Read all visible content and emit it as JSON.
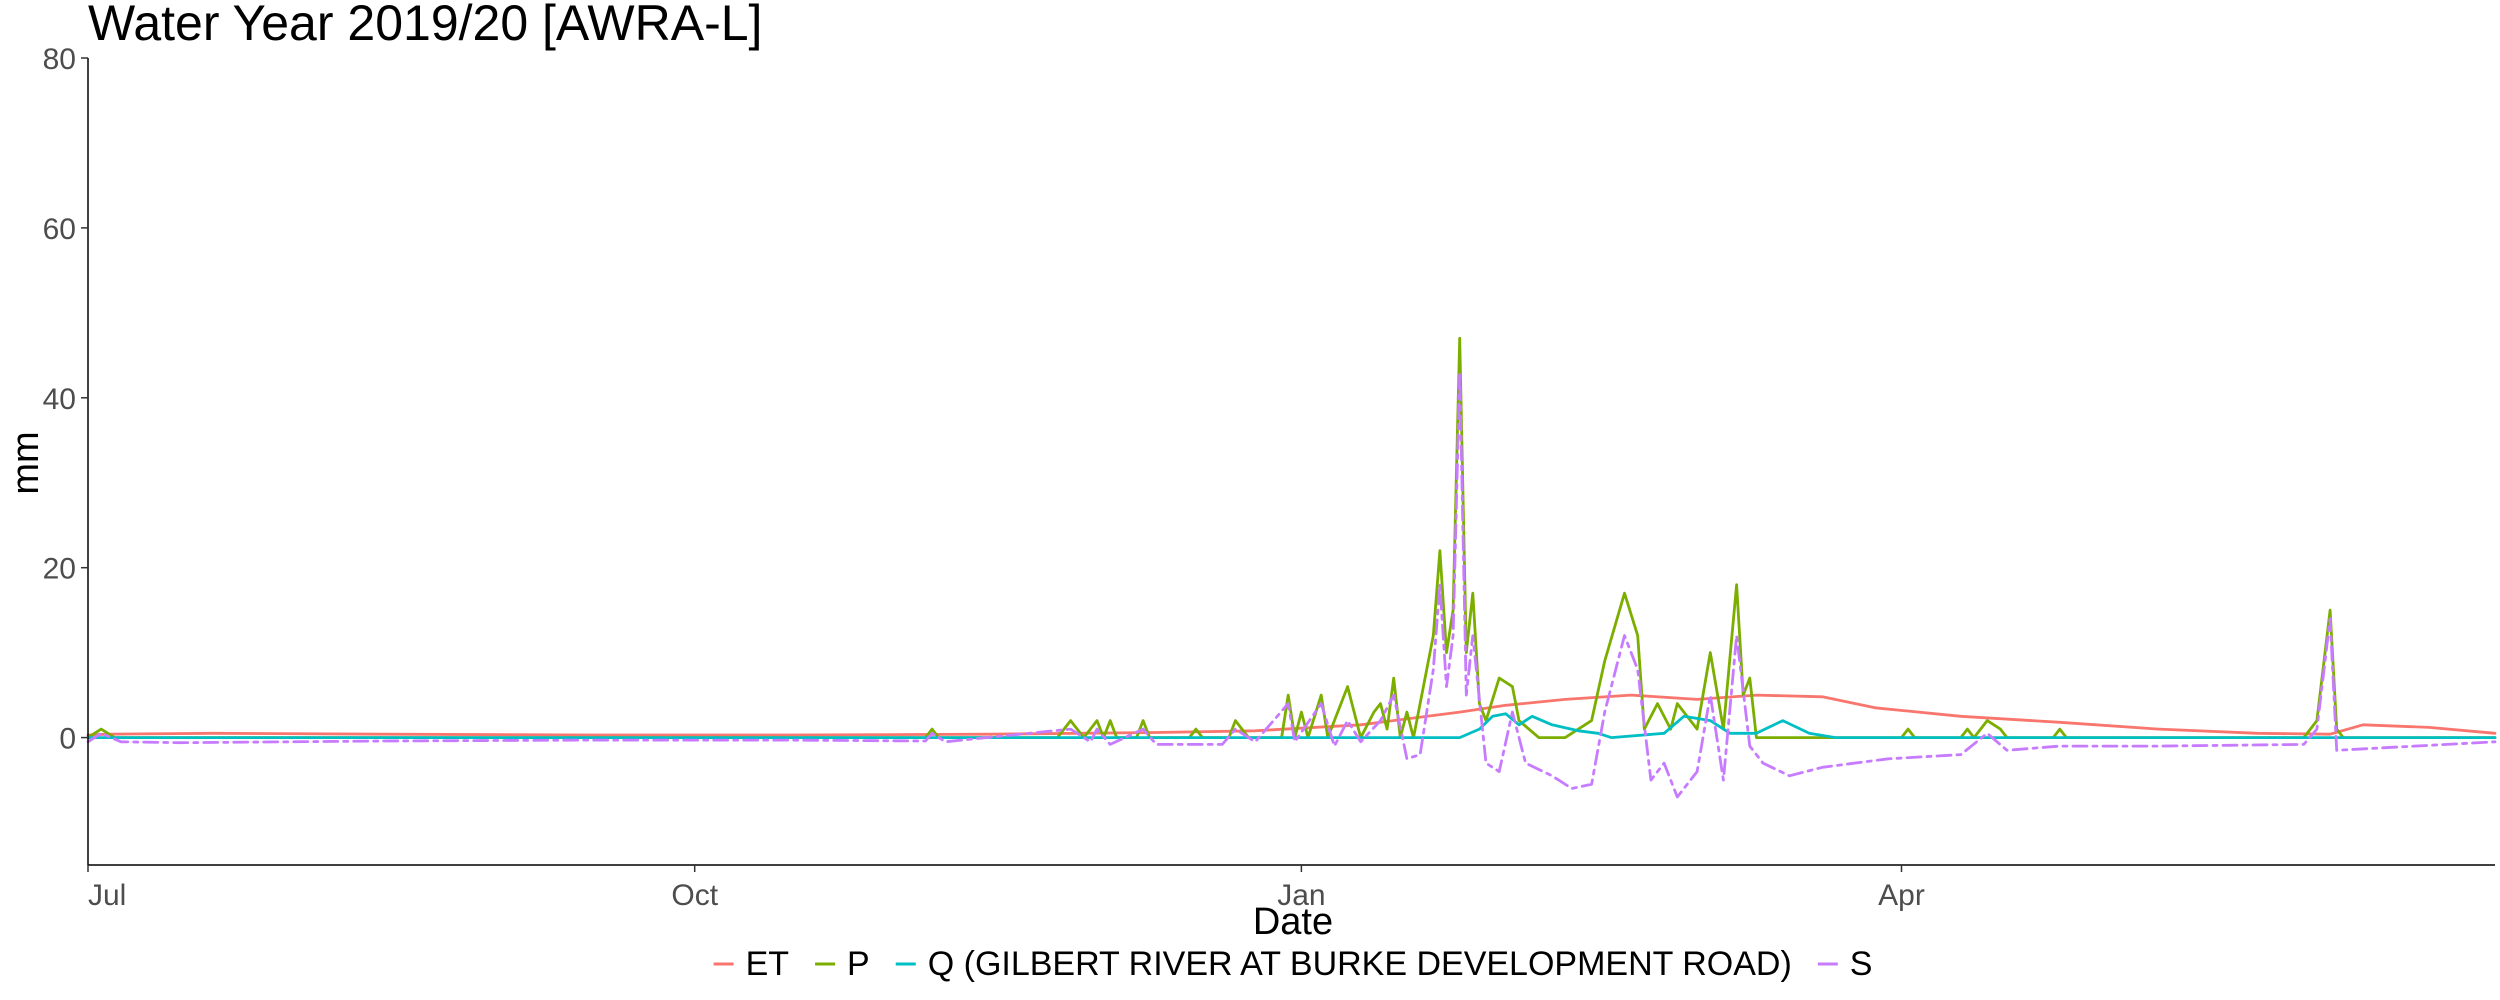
{
  "chart_data": {
    "type": "line",
    "title": "Water Year 2019/20 [AWRA-L]",
    "xlabel": "Date",
    "ylabel": "mm",
    "x_domain": [
      "2019-07-01",
      "2020-06-30"
    ],
    "ylim": [
      -15,
      80
    ],
    "y_ticks": [
      0,
      20,
      40,
      60,
      80
    ],
    "x_ticks": [
      {
        "date": "2019-07-01",
        "label": "Jul"
      },
      {
        "date": "2019-10-01",
        "label": "Oct"
      },
      {
        "date": "2020-01-01",
        "label": "Jan"
      },
      {
        "date": "2020-04-01",
        "label": "Apr"
      }
    ],
    "grid": false,
    "legend_position": "bottom",
    "series": [
      {
        "name": "ET",
        "color": "#F8766D",
        "dash": "solid",
        "points": [
          [
            "2019-07-01",
            0.3
          ],
          [
            "2019-07-04",
            0.4
          ],
          [
            "2019-07-20",
            0.5
          ],
          [
            "2019-08-15",
            0.4
          ],
          [
            "2019-09-15",
            0.3
          ],
          [
            "2019-10-15",
            0.3
          ],
          [
            "2019-11-15",
            0.4
          ],
          [
            "2019-12-10",
            0.6
          ],
          [
            "2019-12-25",
            0.8
          ],
          [
            "2020-01-10",
            1.5
          ],
          [
            "2020-01-25",
            3.0
          ],
          [
            "2020-02-01",
            3.8
          ],
          [
            "2020-02-10",
            4.5
          ],
          [
            "2020-02-20",
            5.0
          ],
          [
            "2020-03-01",
            4.5
          ],
          [
            "2020-03-10",
            5.0
          ],
          [
            "2020-03-20",
            4.8
          ],
          [
            "2020-03-28",
            3.5
          ],
          [
            "2020-04-10",
            2.5
          ],
          [
            "2020-04-25",
            1.8
          ],
          [
            "2020-05-10",
            1.0
          ],
          [
            "2020-05-25",
            0.5
          ],
          [
            "2020-06-05",
            0.4
          ],
          [
            "2020-06-10",
            1.5
          ],
          [
            "2020-06-20",
            1.2
          ],
          [
            "2020-06-30",
            0.5
          ]
        ]
      },
      {
        "name": "P",
        "color": "#7CAE00",
        "dash": "solid",
        "points": [
          [
            "2019-07-01",
            0.0
          ],
          [
            "2019-07-03",
            1.0
          ],
          [
            "2019-07-05",
            0.0
          ],
          [
            "2019-11-05",
            0.0
          ],
          [
            "2019-11-06",
            1.0
          ],
          [
            "2019-11-07",
            0.0
          ],
          [
            "2019-11-25",
            0.0
          ],
          [
            "2019-11-27",
            2.0
          ],
          [
            "2019-11-29",
            0.0
          ],
          [
            "2019-12-01",
            2.0
          ],
          [
            "2019-12-02",
            0.0
          ],
          [
            "2019-12-03",
            2.0
          ],
          [
            "2019-12-04",
            0.0
          ],
          [
            "2019-12-07",
            0.0
          ],
          [
            "2019-12-08",
            2.0
          ],
          [
            "2019-12-09",
            0.0
          ],
          [
            "2019-12-15",
            0.0
          ],
          [
            "2019-12-16",
            1.0
          ],
          [
            "2019-12-17",
            0.0
          ],
          [
            "2019-12-21",
            0.0
          ],
          [
            "2019-12-22",
            2.0
          ],
          [
            "2019-12-24",
            0.0
          ],
          [
            "2019-12-29",
            0.0
          ],
          [
            "2019-12-30",
            5.0
          ],
          [
            "2019-12-31",
            0.0
          ],
          [
            "2020-01-01",
            3.0
          ],
          [
            "2020-01-02",
            0.0
          ],
          [
            "2020-01-04",
            5.0
          ],
          [
            "2020-01-05",
            0.0
          ],
          [
            "2020-01-06",
            2.0
          ],
          [
            "2020-01-08",
            6.0
          ],
          [
            "2020-01-10",
            0.0
          ],
          [
            "2020-01-12",
            3.0
          ],
          [
            "2020-01-13",
            4.0
          ],
          [
            "2020-01-14",
            1.0
          ],
          [
            "2020-01-15",
            7.0
          ],
          [
            "2020-01-16",
            0.0
          ],
          [
            "2020-01-17",
            3.0
          ],
          [
            "2020-01-18",
            0.0
          ],
          [
            "2020-01-21",
            12.0
          ],
          [
            "2020-01-22",
            22.0
          ],
          [
            "2020-01-23",
            10.0
          ],
          [
            "2020-01-24",
            15.0
          ],
          [
            "2020-01-25",
            47.0
          ],
          [
            "2020-01-26",
            10.0
          ],
          [
            "2020-01-27",
            17.0
          ],
          [
            "2020-01-28",
            4.0
          ],
          [
            "2020-01-29",
            2.0
          ],
          [
            "2020-01-31",
            7.0
          ],
          [
            "2020-02-02",
            6.0
          ],
          [
            "2020-02-03",
            2.0
          ],
          [
            "2020-02-06",
            0.0
          ],
          [
            "2020-02-10",
            0.0
          ],
          [
            "2020-02-14",
            2.0
          ],
          [
            "2020-02-16",
            9.0
          ],
          [
            "2020-02-19",
            17.0
          ],
          [
            "2020-02-21",
            12.0
          ],
          [
            "2020-02-22",
            1.0
          ],
          [
            "2020-02-24",
            4.0
          ],
          [
            "2020-02-26",
            1.0
          ],
          [
            "2020-02-27",
            4.0
          ],
          [
            "2020-03-01",
            1.0
          ],
          [
            "2020-03-03",
            10.0
          ],
          [
            "2020-03-05",
            1.0
          ],
          [
            "2020-03-07",
            18.0
          ],
          [
            "2020-03-08",
            5.0
          ],
          [
            "2020-03-09",
            7.0
          ],
          [
            "2020-03-10",
            0.0
          ],
          [
            "2020-04-01",
            0.0
          ],
          [
            "2020-04-02",
            1.0
          ],
          [
            "2020-04-03",
            0.0
          ],
          [
            "2020-04-10",
            0.0
          ],
          [
            "2020-04-11",
            1.0
          ],
          [
            "2020-04-12",
            0.0
          ],
          [
            "2020-04-14",
            2.0
          ],
          [
            "2020-04-16",
            1.0
          ],
          [
            "2020-04-17",
            0.0
          ],
          [
            "2020-04-24",
            0.0
          ],
          [
            "2020-04-25",
            1.0
          ],
          [
            "2020-04-26",
            0.0
          ],
          [
            "2020-06-01",
            0.0
          ],
          [
            "2020-06-03",
            2.0
          ],
          [
            "2020-06-05",
            15.0
          ],
          [
            "2020-06-06",
            1.0
          ],
          [
            "2020-06-07",
            0.0
          ],
          [
            "2020-06-30",
            0.0
          ]
        ]
      },
      {
        "name": "Q (GILBERT RIVER AT BURKE DEVELOPMENT ROAD)",
        "color": "#00BFC4",
        "dash": "solid",
        "points": [
          [
            "2019-07-01",
            0.0
          ],
          [
            "2020-01-25",
            0.0
          ],
          [
            "2020-01-28",
            1.0
          ],
          [
            "2020-01-30",
            2.5
          ],
          [
            "2020-02-01",
            2.8
          ],
          [
            "2020-02-03",
            1.5
          ],
          [
            "2020-02-05",
            2.5
          ],
          [
            "2020-02-08",
            1.5
          ],
          [
            "2020-02-12",
            0.8
          ],
          [
            "2020-02-15",
            0.5
          ],
          [
            "2020-02-17",
            0.0
          ],
          [
            "2020-02-25",
            0.5
          ],
          [
            "2020-02-28",
            2.5
          ],
          [
            "2020-03-03",
            2.0
          ],
          [
            "2020-03-06",
            0.5
          ],
          [
            "2020-03-10",
            0.5
          ],
          [
            "2020-03-14",
            2.0
          ],
          [
            "2020-03-18",
            0.5
          ],
          [
            "2020-03-22",
            0.0
          ],
          [
            "2020-06-30",
            0.0
          ]
        ]
      },
      {
        "name": "S",
        "color": "#C77CFF",
        "dash": "dashed",
        "points": [
          [
            "2019-07-01",
            -0.5
          ],
          [
            "2019-07-03",
            0.5
          ],
          [
            "2019-07-06",
            -0.5
          ],
          [
            "2019-07-15",
            -0.6
          ],
          [
            "2019-08-15",
            -0.4
          ],
          [
            "2019-09-15",
            -0.3
          ],
          [
            "2019-10-15",
            -0.3
          ],
          [
            "2019-11-05",
            -0.4
          ],
          [
            "2019-11-06",
            0.5
          ],
          [
            "2019-11-08",
            -0.5
          ],
          [
            "2019-11-27",
            1.0
          ],
          [
            "2019-11-30",
            -0.5
          ],
          [
            "2019-12-01",
            1.0
          ],
          [
            "2019-12-03",
            -0.8
          ],
          [
            "2019-12-08",
            1.0
          ],
          [
            "2019-12-10",
            -0.8
          ],
          [
            "2019-12-20",
            -0.8
          ],
          [
            "2019-12-22",
            1.0
          ],
          [
            "2019-12-25",
            -0.5
          ],
          [
            "2019-12-30",
            4.0
          ],
          [
            "2019-12-31",
            -0.5
          ],
          [
            "2020-01-04",
            4.0
          ],
          [
            "2020-01-06",
            -1.0
          ],
          [
            "2020-01-08",
            2.0
          ],
          [
            "2020-01-10",
            -0.5
          ],
          [
            "2020-01-13",
            2.0
          ],
          [
            "2020-01-15",
            5.0
          ],
          [
            "2020-01-17",
            -2.5
          ],
          [
            "2020-01-19",
            -2.0
          ],
          [
            "2020-01-21",
            8.0
          ],
          [
            "2020-01-22",
            18.0
          ],
          [
            "2020-01-23",
            6.0
          ],
          [
            "2020-01-24",
            12.0
          ],
          [
            "2020-01-25",
            43.0
          ],
          [
            "2020-01-26",
            5.0
          ],
          [
            "2020-01-27",
            12.0
          ],
          [
            "2020-01-29",
            -3.0
          ],
          [
            "2020-01-31",
            -4.0
          ],
          [
            "2020-02-02",
            3.0
          ],
          [
            "2020-02-04",
            -3.0
          ],
          [
            "2020-02-08",
            -4.5
          ],
          [
            "2020-02-11",
            -6.0
          ],
          [
            "2020-02-14",
            -5.5
          ],
          [
            "2020-02-16",
            3.0
          ],
          [
            "2020-02-19",
            12.0
          ],
          [
            "2020-02-21",
            8.0
          ],
          [
            "2020-02-23",
            -5.0
          ],
          [
            "2020-02-25",
            -3.0
          ],
          [
            "2020-02-27",
            -7.0
          ],
          [
            "2020-03-01",
            -4.0
          ],
          [
            "2020-03-03",
            5.0
          ],
          [
            "2020-03-05",
            -5.0
          ],
          [
            "2020-03-07",
            12.0
          ],
          [
            "2020-03-09",
            -1.0
          ],
          [
            "2020-03-11",
            -3.0
          ],
          [
            "2020-03-15",
            -4.5
          ],
          [
            "2020-03-20",
            -3.5
          ],
          [
            "2020-03-30",
            -2.5
          ],
          [
            "2020-04-10",
            -2.0
          ],
          [
            "2020-04-14",
            0.5
          ],
          [
            "2020-04-17",
            -1.5
          ],
          [
            "2020-04-25",
            -1.0
          ],
          [
            "2020-05-10",
            -1.0
          ],
          [
            "2020-06-01",
            -0.8
          ],
          [
            "2020-06-03",
            1.0
          ],
          [
            "2020-06-05",
            14.0
          ],
          [
            "2020-06-06",
            -1.5
          ],
          [
            "2020-06-30",
            -0.5
          ]
        ]
      }
    ]
  }
}
